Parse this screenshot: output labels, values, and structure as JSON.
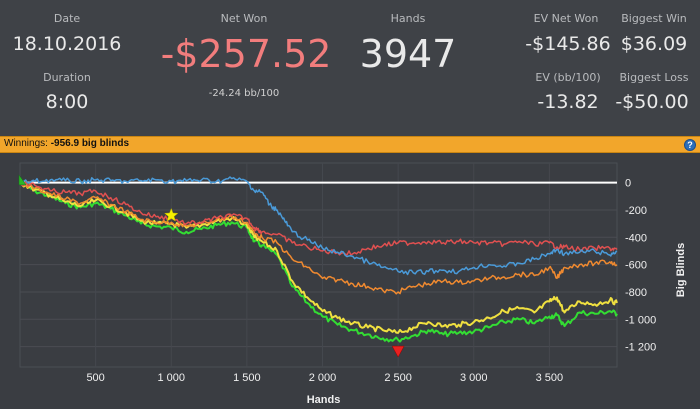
{
  "stats": {
    "date_label": "Date",
    "date_value": "18.10.2016",
    "duration_label": "Duration",
    "duration_value": "8:00",
    "net_won_label": "Net Won",
    "net_won_value": "-$257.52",
    "net_won_sub": "-24.24 bb/100",
    "hands_label": "Hands",
    "hands_value": "3947",
    "ev_net_won_label": "EV Net Won",
    "ev_net_won_value": "-$145.86",
    "ev_bb_label": "EV (bb/100)",
    "ev_bb_value": "-13.82",
    "biggest_win_label": "Biggest Win",
    "biggest_win_value": "$36.09",
    "biggest_loss_label": "Biggest Loss",
    "biggest_loss_value": "-$50.00"
  },
  "winnings_bar": {
    "label": "Winnings:",
    "value": "-956.9 big blinds",
    "help_icon": "question-circle-icon"
  },
  "colors": {
    "net_won": "#f27d7d",
    "bar": "#f2a62b",
    "green": "#33dd33",
    "yellow": "#f0e040",
    "orange": "#f08a30",
    "red": "#e05050",
    "blue": "#4a9ad8",
    "zero_line": "#ffffff"
  },
  "chart_data": {
    "type": "line",
    "xlabel": "Hands",
    "ylabel": "Big Blinds",
    "xlim": [
      0,
      3947
    ],
    "ylim": [
      -1320,
      100
    ],
    "x_ticks": [
      500,
      1000,
      1500,
      2000,
      2500,
      3000,
      3500
    ],
    "x_tick_labels": [
      "500",
      "1 000",
      "1 500",
      "2 000",
      "2 500",
      "3 000",
      "3 500"
    ],
    "y_ticks": [
      0,
      -200,
      -400,
      -600,
      -800,
      -1000,
      -1200
    ],
    "y_tick_labels": [
      "0",
      "-200",
      "-400",
      "-600",
      "-800",
      "-1 000",
      "-1 200"
    ],
    "markers": [
      {
        "icon": "start-triangle-icon",
        "x": 0,
        "y": 20
      },
      {
        "icon": "star-icon",
        "x": 1000,
        "y": -240
      },
      {
        "icon": "min-triangle-icon",
        "x": 2500,
        "y": -1240
      }
    ],
    "series": [
      {
        "color": "#33dd33",
        "x": [
          0,
          100,
          200,
          300,
          400,
          500,
          600,
          700,
          800,
          900,
          1000,
          1100,
          1200,
          1300,
          1400,
          1500,
          1550,
          1600,
          1700,
          1800,
          1900,
          2000,
          2100,
          2200,
          2300,
          2400,
          2500,
          2600,
          2700,
          2800,
          2900,
          3000,
          3100,
          3200,
          3300,
          3400,
          3500,
          3550,
          3600,
          3700,
          3800,
          3900,
          3947
        ],
        "y": [
          0,
          -60,
          -100,
          -150,
          -180,
          -150,
          -190,
          -240,
          -300,
          -320,
          -330,
          -360,
          -340,
          -310,
          -290,
          -330,
          -430,
          -460,
          -530,
          -760,
          -880,
          -980,
          -1040,
          -1080,
          -1110,
          -1140,
          -1150,
          -1120,
          -1080,
          -1110,
          -1100,
          -1090,
          -1060,
          -1020,
          -1000,
          -1030,
          -980,
          -970,
          -1050,
          -950,
          -960,
          -940,
          -960
        ]
      },
      {
        "color": "#f0e040",
        "x": [
          0,
          100,
          200,
          300,
          400,
          500,
          600,
          700,
          800,
          900,
          1000,
          1100,
          1200,
          1300,
          1400,
          1500,
          1550,
          1600,
          1700,
          1800,
          1900,
          2000,
          2100,
          2200,
          2300,
          2400,
          2500,
          2600,
          2700,
          2800,
          2900,
          3000,
          3100,
          3200,
          3300,
          3400,
          3500,
          3550,
          3600,
          3700,
          3800,
          3900,
          3947
        ],
        "y": [
          0,
          -50,
          -90,
          -140,
          -170,
          -130,
          -170,
          -220,
          -280,
          -300,
          -300,
          -330,
          -310,
          -280,
          -260,
          -310,
          -400,
          -430,
          -500,
          -720,
          -840,
          -940,
          -990,
          -1030,
          -1060,
          -1080,
          -1100,
          -1060,
          -1020,
          -1050,
          -1040,
          -1020,
          -990,
          -940,
          -920,
          -950,
          -870,
          -840,
          -950,
          -870,
          -890,
          -860,
          -880
        ]
      },
      {
        "color": "#f08a30",
        "x": [
          0,
          100,
          200,
          300,
          400,
          500,
          600,
          700,
          800,
          900,
          1000,
          1100,
          1200,
          1300,
          1400,
          1500,
          1550,
          1600,
          1700,
          1800,
          1900,
          2000,
          2100,
          2200,
          2300,
          2400,
          2500,
          2600,
          2700,
          2800,
          2900,
          3000,
          3100,
          3200,
          3300,
          3400,
          3500,
          3550,
          3600,
          3700,
          3800,
          3900,
          3947
        ],
        "y": [
          0,
          -40,
          -80,
          -120,
          -150,
          -110,
          -160,
          -210,
          -270,
          -290,
          -290,
          -320,
          -300,
          -270,
          -250,
          -290,
          -370,
          -400,
          -440,
          -560,
          -620,
          -700,
          -710,
          -740,
          -760,
          -790,
          -800,
          -760,
          -740,
          -720,
          -730,
          -720,
          -700,
          -690,
          -670,
          -680,
          -620,
          -700,
          -620,
          -600,
          -590,
          -580,
          -600
        ]
      },
      {
        "color": "#e05050",
        "x": [
          0,
          100,
          200,
          300,
          400,
          500,
          600,
          700,
          800,
          900,
          1000,
          1100,
          1200,
          1300,
          1400,
          1500,
          1550,
          1600,
          1700,
          1800,
          1900,
          2000,
          2100,
          2200,
          2300,
          2400,
          2500,
          2600,
          2700,
          2800,
          2900,
          3000,
          3100,
          3200,
          3300,
          3400,
          3500,
          3550,
          3600,
          3700,
          3800,
          3900,
          3947
        ],
        "y": [
          0,
          -20,
          -60,
          -70,
          -80,
          -60,
          -110,
          -160,
          -220,
          -250,
          -260,
          -300,
          -290,
          -260,
          -240,
          -260,
          -330,
          -360,
          -380,
          -440,
          -470,
          -500,
          -510,
          -520,
          -480,
          -460,
          -440,
          -440,
          -430,
          -440,
          -430,
          -440,
          -440,
          -450,
          -430,
          -450,
          -440,
          -470,
          -470,
          -490,
          -480,
          -480,
          -490
        ]
      },
      {
        "color": "#4a9ad8",
        "x": [
          0,
          100,
          200,
          300,
          400,
          500,
          600,
          700,
          800,
          900,
          1000,
          1100,
          1200,
          1300,
          1400,
          1500,
          1550,
          1600,
          1650,
          1700,
          1750,
          1800,
          1900,
          2000,
          2100,
          2200,
          2300,
          2400,
          2500,
          2600,
          2700,
          2800,
          2900,
          3000,
          3100,
          3200,
          3300,
          3400,
          3500,
          3550,
          3600,
          3700,
          3800,
          3900,
          3947
        ],
        "y": [
          0,
          10,
          20,
          15,
          10,
          20,
          15,
          10,
          15,
          20,
          10,
          15,
          20,
          10,
          30,
          10,
          -60,
          -70,
          -160,
          -200,
          -280,
          -360,
          -420,
          -480,
          -510,
          -540,
          -580,
          -620,
          -650,
          -660,
          -650,
          -640,
          -650,
          -620,
          -600,
          -610,
          -590,
          -560,
          -520,
          -490,
          -520,
          -510,
          -500,
          -530,
          -500
        ]
      }
    ]
  }
}
